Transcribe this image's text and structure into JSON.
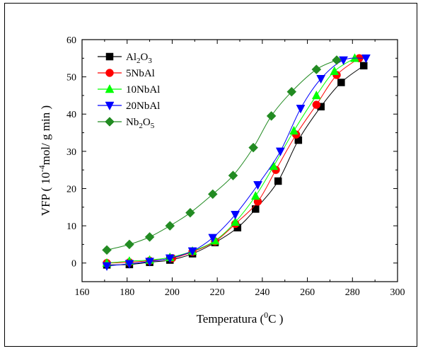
{
  "chart_data": {
    "type": "line",
    "xlabel": {
      "main": "Temperatura (",
      "sup": "0",
      "tail": "C )"
    },
    "ylabel": {
      "main": "VFP ( 10",
      "sup": "-4",
      "tail": "mol/ g min )"
    },
    "xlim": [
      160,
      300
    ],
    "ylim": [
      -5,
      60
    ],
    "xticks": [
      160,
      180,
      200,
      220,
      240,
      260,
      280,
      300
    ],
    "yticks": [
      0,
      10,
      20,
      30,
      40,
      50,
      60
    ],
    "grid": false,
    "legend_position": "top-left",
    "series": [
      {
        "name": "Al2O3",
        "legend_parts": [
          [
            "Al",
            ""
          ],
          [
            "2",
            "sub"
          ],
          [
            "O",
            ""
          ],
          [
            "3",
            "sub"
          ]
        ],
        "color": "#000000",
        "marker": "square",
        "x": [
          171,
          181,
          190,
          199,
          209,
          219,
          229,
          237,
          247,
          256,
          266,
          275,
          285
        ],
        "y": [
          -0.5,
          -0.4,
          0.2,
          0.8,
          2.5,
          5.5,
          9.5,
          14.5,
          22,
          33,
          42,
          48.5,
          53
        ]
      },
      {
        "name": "5NbAl",
        "legend_parts": [
          [
            "5NbAl",
            ""
          ]
        ],
        "color": "#ff0000",
        "marker": "circle",
        "x": [
          171,
          181,
          190,
          200,
          209,
          219,
          228,
          238,
          246,
          255,
          264,
          273,
          283
        ],
        "y": [
          0,
          0.2,
          0.6,
          1.3,
          3,
          5.8,
          10.5,
          16.5,
          25,
          34.5,
          42.5,
          50.5,
          55
        ]
      },
      {
        "name": "10NbAl",
        "legend_parts": [
          [
            "10NbAl",
            ""
          ]
        ],
        "color": "#00ff00",
        "marker": "triangle-up",
        "x": [
          171,
          181,
          190,
          199,
          209,
          219,
          228,
          237,
          245,
          254,
          264,
          272,
          281
        ],
        "y": [
          0,
          0.5,
          0.8,
          1.5,
          3.2,
          6,
          11,
          18,
          26,
          35.5,
          45,
          51.5,
          55
        ]
      },
      {
        "name": "20NbAl",
        "legend_parts": [
          [
            "20NbAl",
            ""
          ]
        ],
        "color": "#0000ff",
        "marker": "triangle-down",
        "x": [
          171,
          181,
          190,
          199,
          209,
          218,
          228,
          238,
          248,
          257,
          266,
          276,
          286
        ],
        "y": [
          -0.8,
          -0.2,
          0.4,
          1.3,
          3.2,
          6.8,
          13,
          21,
          30,
          41.5,
          49.5,
          54.5,
          55
        ]
      },
      {
        "name": "Nb2O5",
        "legend_parts": [
          [
            "Nb",
            ""
          ],
          [
            "2",
            "sub"
          ],
          [
            "O",
            ""
          ],
          [
            "5",
            "sub"
          ]
        ],
        "color": "#228b22",
        "marker": "diamond",
        "x": [
          171,
          181,
          190,
          199,
          208,
          218,
          227,
          236,
          244,
          253,
          264,
          273
        ],
        "y": [
          3.5,
          5,
          7,
          10,
          13.5,
          18.5,
          23.5,
          31,
          39.5,
          46,
          52,
          54.5
        ]
      }
    ]
  }
}
